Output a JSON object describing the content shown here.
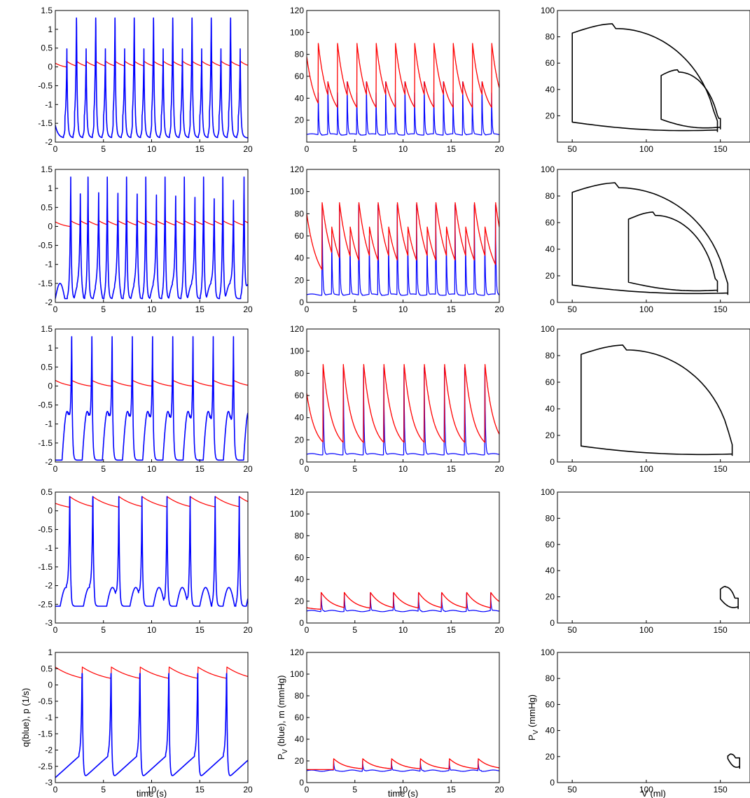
{
  "colors": {
    "q": "#0000ff",
    "p": "#ff0000",
    "pv": "#0000ff",
    "m": "#ff0000",
    "loop": "#000000"
  },
  "labels": {
    "time": "time (s)",
    "left_ylabel": "q(blue), p (1/s)",
    "mid_ylabel_main": "P",
    "mid_ylabel_sub": "V",
    "mid_ylabel_rest": " (blue), m (mmHg)",
    "right_ylabel_main": "P",
    "right_ylabel_sub": "V",
    "right_ylabel_rest": " (mmHg)",
    "volume": "V (ml)"
  },
  "chart_data": [
    {
      "type": "line",
      "panel": "row1-left",
      "xlim": [
        0,
        20
      ],
      "ylim": [
        -2,
        1.5
      ],
      "xticks": [
        "0",
        "5",
        "10",
        "15",
        "20"
      ],
      "yticks": [
        "-2",
        "-1.5",
        "-1",
        "-0.5",
        "0",
        "0.5",
        "1",
        "1.5"
      ],
      "series": [
        {
          "color": "blue",
          "beats": [
            1.2,
            2.2,
            3.2,
            4.2,
            5.2,
            6.2,
            7.2,
            8.2,
            9.2,
            10.2,
            11.2,
            12.2,
            13.2,
            14.2,
            15.2,
            16.2,
            17.2,
            18.2,
            19.2
          ],
          "peaks": [
            0.3,
            1.3,
            0.3,
            1.3,
            0.3,
            1.3,
            0.3,
            1.3,
            0.3,
            1.3,
            0.3,
            1.3,
            0.3,
            1.3,
            0.3,
            1.3,
            0.3,
            1.3,
            0.3
          ],
          "trough": -1.9
        },
        {
          "color": "red",
          "min": -0.05,
          "max": 0.15
        }
      ]
    },
    {
      "type": "line",
      "panel": "row1-mid",
      "xlim": [
        0,
        20
      ],
      "ylim": [
        0,
        120
      ],
      "xticks": [
        "0",
        "5",
        "10",
        "15",
        "20"
      ],
      "yticks": [
        "20",
        "40",
        "60",
        "80",
        "100",
        "120"
      ],
      "series": [
        {
          "color": "red",
          "peaks": [
            90,
            55
          ],
          "base": 25
        },
        {
          "color": "blue",
          "peaks": [
            45,
            55
          ],
          "base": 7
        }
      ]
    },
    {
      "type": "line",
      "panel": "row1-right",
      "xlim": [
        40,
        170
      ],
      "ylim": [
        0,
        100
      ],
      "xticks": [
        "50",
        "100",
        "150"
      ],
      "yticks": [
        "20",
        "40",
        "60",
        "80",
        "100"
      ],
      "series": [
        {
          "color": "black",
          "loop": "outer",
          "v_range": [
            50,
            148
          ],
          "p_max": 90,
          "p_min": 8
        },
        {
          "color": "black",
          "loop": "inner",
          "v_range": [
            110,
            150
          ],
          "p_max": 55,
          "p_min": 10
        }
      ]
    },
    {
      "type": "line",
      "panel": "row2-left",
      "xlim": [
        0,
        20
      ],
      "ylim": [
        -2,
        1.5
      ],
      "xticks": [
        "0",
        "5",
        "10",
        "15",
        "20"
      ],
      "yticks": [
        "-2",
        "-1.5",
        "-1",
        "-0.5",
        "0",
        "0.5",
        "1",
        "1.5"
      ],
      "series": [
        {
          "color": "blue",
          "peaks": [
            1.3,
            0.5
          ],
          "trough": -1.9
        },
        {
          "color": "red",
          "min": -0.05,
          "max": 0.15
        }
      ]
    },
    {
      "type": "line",
      "panel": "row2-mid",
      "xlim": [
        0,
        20
      ],
      "ylim": [
        0,
        120
      ],
      "xticks": [
        "0",
        "5",
        "10",
        "15",
        "20"
      ],
      "yticks": [
        "0",
        "20",
        "40",
        "60",
        "80",
        "100",
        "120"
      ],
      "series": [
        {
          "color": "red",
          "peaks": [
            90,
            68
          ],
          "base": 16
        },
        {
          "color": "blue",
          "peaks": [
            60
          ],
          "base": 7
        }
      ]
    },
    {
      "type": "line",
      "panel": "row2-right",
      "xlim": [
        40,
        170
      ],
      "ylim": [
        0,
        100
      ],
      "xticks": [
        "50",
        "100",
        "150"
      ],
      "yticks": [
        "0",
        "20",
        "40",
        "60",
        "80",
        "100"
      ],
      "series": [
        {
          "color": "black",
          "loop": "outer",
          "v_range": [
            50,
            155
          ],
          "p_max": 90,
          "p_min": 6
        },
        {
          "color": "black",
          "loop": "inner",
          "v_range": [
            88,
            148
          ],
          "p_max": 68,
          "p_min": 8
        }
      ]
    },
    {
      "type": "line",
      "panel": "row3-left",
      "xlim": [
        0,
        20
      ],
      "ylim": [
        -2,
        1.5
      ],
      "xticks": [
        "0",
        "5",
        "10",
        "15",
        "20"
      ],
      "yticks": [
        "-2",
        "-1.5",
        "-1",
        "-0.5",
        "0",
        "0.5",
        "1",
        "1.5"
      ],
      "series": [
        {
          "color": "blue",
          "period": 2.1,
          "peak": 1.3,
          "trough": -1.95
        },
        {
          "color": "red",
          "min": -0.05,
          "max": 0.15
        }
      ]
    },
    {
      "type": "line",
      "panel": "row3-mid",
      "xlim": [
        0,
        20
      ],
      "ylim": [
        0,
        120
      ],
      "xticks": [
        "0",
        "5",
        "10",
        "15",
        "20"
      ],
      "yticks": [
        "0",
        "20",
        "40",
        "60",
        "80",
        "100",
        "120"
      ],
      "series": [
        {
          "color": "red",
          "peak": 88,
          "base": 12
        },
        {
          "color": "blue",
          "peak": 85,
          "base": 7
        }
      ]
    },
    {
      "type": "line",
      "panel": "row3-right",
      "xlim": [
        40,
        170
      ],
      "ylim": [
        0,
        100
      ],
      "xticks": [
        "50",
        "100",
        "150"
      ],
      "yticks": [
        "0",
        "20",
        "40",
        "60",
        "80",
        "100"
      ],
      "series": [
        {
          "color": "black",
          "loop": "single",
          "v_range": [
            56,
            158
          ],
          "p_max": 88,
          "p_min": 5
        }
      ]
    },
    {
      "type": "line",
      "panel": "row4-left",
      "xlim": [
        0,
        20
      ],
      "ylim": [
        -3,
        0.5
      ],
      "xticks": [
        "0",
        "5",
        "10",
        "15",
        "20"
      ],
      "yticks": [
        "-3",
        "-2.5",
        "-2",
        "-1.5",
        "-1",
        "-0.5",
        "0",
        "0.5"
      ],
      "series": [
        {
          "color": "blue",
          "period": 2.5,
          "peak": 0.38,
          "trough": -2.6
        },
        {
          "color": "red",
          "min": 0.0,
          "max": 0.38
        }
      ]
    },
    {
      "type": "line",
      "panel": "row4-mid",
      "xlim": [
        0,
        20
      ],
      "ylim": [
        0,
        120
      ],
      "xticks": [
        "0",
        "5",
        "10",
        "15",
        "20"
      ],
      "yticks": [
        "0",
        "20",
        "40",
        "60",
        "80",
        "100",
        "120"
      ],
      "series": [
        {
          "color": "red",
          "peak": 28,
          "base": 12
        },
        {
          "color": "blue",
          "peak": 27,
          "base": 11
        }
      ]
    },
    {
      "type": "line",
      "panel": "row4-right",
      "xlim": [
        40,
        170
      ],
      "ylim": [
        0,
        100
      ],
      "xticks": [
        "50",
        "100",
        "150"
      ],
      "yticks": [
        "0",
        "20",
        "40",
        "60",
        "80",
        "100"
      ],
      "series": [
        {
          "color": "black",
          "loop": "small",
          "v_range": [
            150,
            162
          ],
          "p_max": 28,
          "p_min": 11
        }
      ]
    },
    {
      "type": "line",
      "panel": "row5-left",
      "xlim": [
        0,
        20
      ],
      "ylim": [
        -3,
        1
      ],
      "xticks": [
        "0",
        "5",
        "10",
        "15",
        "20"
      ],
      "yticks": [
        "-3",
        "-2.5",
        "-2",
        "-1.5",
        "-1",
        "-0.5",
        "0",
        "0.5",
        "1"
      ],
      "xlabel": "time (s)",
      "ylabel": "q(blue), p (1/s)",
      "series": [
        {
          "color": "blue",
          "period": 3.0,
          "peak": 0.35,
          "trough": -2.9
        },
        {
          "color": "red",
          "min": 0.05,
          "max": 0.55
        }
      ]
    },
    {
      "type": "line",
      "panel": "row5-mid",
      "xlim": [
        0,
        20
      ],
      "ylim": [
        0,
        120
      ],
      "xticks": [
        "0",
        "5",
        "10",
        "15",
        "20"
      ],
      "yticks": [
        "0",
        "20",
        "40",
        "60",
        "80",
        "100",
        "120"
      ],
      "xlabel": "time (s)",
      "ylabel": "P_V (blue), m (mmHg)",
      "series": [
        {
          "color": "red",
          "peak": 22,
          "base": 12
        },
        {
          "color": "blue",
          "peak": 20,
          "base": 11
        }
      ]
    },
    {
      "type": "line",
      "panel": "row5-right",
      "xlim": [
        40,
        170
      ],
      "ylim": [
        0,
        100
      ],
      "xticks": [
        "50",
        "100",
        "150"
      ],
      "yticks": [
        "0",
        "20",
        "40",
        "60",
        "80",
        "100"
      ],
      "xlabel": "V (ml)",
      "ylabel": "P_V (mmHg)",
      "series": [
        {
          "color": "black",
          "loop": "small",
          "v_range": [
            155,
            163
          ],
          "p_max": 22,
          "p_min": 11
        }
      ]
    }
  ]
}
